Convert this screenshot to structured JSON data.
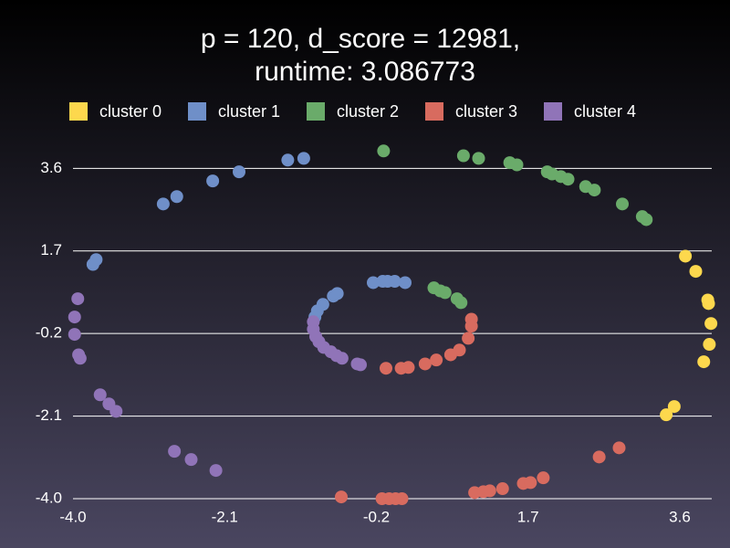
{
  "chart_data": {
    "type": "scatter",
    "title": [
      "p = 120, d_score = 12981,",
      "runtime: 3.086773"
    ],
    "xlim": [
      -4.0,
      4.0
    ],
    "ylim": [
      -4.0,
      4.3
    ],
    "xticks": [
      {
        "value": -4.0,
        "label": "-4.0"
      },
      -2.1,
      -0.2,
      1.7,
      3.6
    ],
    "yticks": [
      {
        "value": -4.0,
        "label": "-4.0"
      },
      -2.1,
      -0.2,
      1.7,
      3.6
    ],
    "grid": true,
    "legend": "top",
    "series": [
      {
        "name": "cluster 0",
        "color": "#fdd84d",
        "x": [
          3.67,
          3.8,
          3.95,
          3.96,
          3.99,
          3.97,
          3.9,
          3.53,
          3.43
        ],
        "y": [
          1.58,
          1.23,
          0.57,
          0.49,
          0.03,
          -0.45,
          -0.85,
          -1.88,
          -2.07
        ]
      },
      {
        "name": "cluster 1",
        "color": "#6f8fc8",
        "x": [
          -3.71,
          -3.75,
          -2.87,
          -2.7,
          -2.25,
          -1.92,
          -1.31,
          -1.11,
          -0.24,
          -0.12,
          -0.06,
          0.03,
          0.16,
          -0.69,
          -0.74,
          -0.87,
          -0.94,
          -0.97
        ],
        "y": [
          1.5,
          1.39,
          2.78,
          2.95,
          3.31,
          3.52,
          3.79,
          3.83,
          0.97,
          1.0,
          1.0,
          1.0,
          0.97,
          0.72,
          0.66,
          0.47,
          0.32,
          0.18
        ]
      },
      {
        "name": "cluster 2",
        "color": "#6aab6a",
        "x": [
          -0.11,
          0.89,
          1.08,
          1.47,
          1.56,
          1.94,
          2.0,
          2.11,
          2.2,
          2.42,
          2.53,
          2.88,
          3.13,
          3.18,
          0.52,
          0.6,
          0.66,
          0.81,
          0.86
        ],
        "y": [
          4.0,
          3.89,
          3.83,
          3.73,
          3.68,
          3.52,
          3.47,
          3.41,
          3.35,
          3.18,
          3.1,
          2.78,
          2.49,
          2.42,
          0.85,
          0.78,
          0.74,
          0.6,
          0.51
        ]
      },
      {
        "name": "cluster 3",
        "color": "#d86b5f",
        "x": [
          0.99,
          0.99,
          0.95,
          0.84,
          0.73,
          0.55,
          0.41,
          0.2,
          0.11,
          -0.08,
          -0.64,
          -0.13,
          -0.04,
          0.04,
          0.12,
          1.03,
          1.14,
          1.22,
          1.38,
          1.64,
          1.73,
          1.89,
          2.59,
          2.84
        ],
        "y": [
          0.13,
          -0.03,
          -0.31,
          -0.58,
          -0.69,
          -0.81,
          -0.9,
          -0.98,
          -1.0,
          -1.0,
          -3.96,
          -4.0,
          -4.0,
          -4.0,
          -4.0,
          -3.86,
          -3.84,
          -3.82,
          -3.77,
          -3.65,
          -3.63,
          -3.52,
          -3.04,
          -2.83
        ]
      },
      {
        "name": "cluster 4",
        "color": "#9074b8",
        "x": [
          -3.94,
          -3.98,
          -3.98,
          -3.93,
          -3.91,
          -3.66,
          -3.55,
          -3.46,
          -2.73,
          -2.52,
          -2.21,
          -0.99,
          -0.99,
          -0.96,
          -0.92,
          -0.86,
          -0.77,
          -0.7,
          -0.63,
          -0.44,
          -0.4
        ],
        "y": [
          0.6,
          0.18,
          -0.22,
          -0.69,
          -0.77,
          -1.61,
          -1.82,
          -1.99,
          -2.91,
          -3.1,
          -3.35,
          0.07,
          -0.1,
          -0.27,
          -0.39,
          -0.52,
          -0.62,
          -0.71,
          -0.77,
          -0.9,
          -0.92
        ]
      }
    ]
  }
}
